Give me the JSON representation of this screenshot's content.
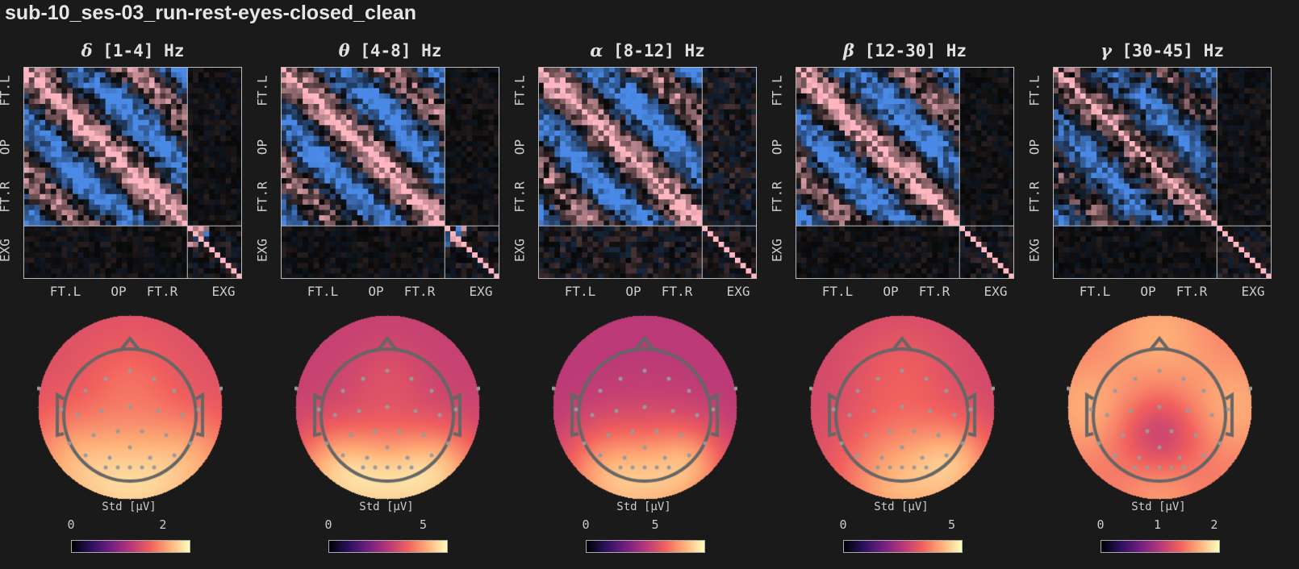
{
  "title": "sub-10_ses-03_run-rest-eyes-closed_clean",
  "chart_data": [
    {
      "type": "heatmap",
      "title_symbol": "δ",
      "title_text": " [1-4] Hz",
      "ytick_labels": [
        "FT.L",
        "OP",
        "FT.R",
        "EXG"
      ],
      "xtick_labels": [
        "FT.L",
        "OP",
        "FT.R",
        "EXG"
      ],
      "colorbar_label": "Std [µV]",
      "colorbar_ticks": [
        0,
        2
      ],
      "colorbar_range": [
        0,
        2.6
      ],
      "colormap": "magma",
      "topomap_pattern": "frontal-high-center, occipital max"
    },
    {
      "type": "heatmap",
      "title_symbol": "θ",
      "title_text": " [4-8] Hz",
      "ytick_labels": [
        "FT.L",
        "OP",
        "FT.R",
        "EXG"
      ],
      "xtick_labels": [
        "FT.L",
        "OP",
        "FT.R",
        "EXG"
      ],
      "colorbar_label": "Std [µV]",
      "colorbar_ticks": [
        0,
        5
      ],
      "colorbar_range": [
        0,
        6.3
      ],
      "colormap": "magma",
      "topomap_pattern": "occipital max"
    },
    {
      "type": "heatmap",
      "title_symbol": "α",
      "title_text": " [8-12] Hz",
      "ytick_labels": [
        "FT.L",
        "OP",
        "FT.R",
        "EXG"
      ],
      "xtick_labels": [
        "FT.L",
        "OP",
        "FT.R",
        "EXG"
      ],
      "colorbar_label": "Std [µV]",
      "colorbar_ticks": [
        0,
        5
      ],
      "colorbar_range": [
        0,
        8.6
      ],
      "colormap": "magma",
      "topomap_pattern": "occipital max"
    },
    {
      "type": "heatmap",
      "title_symbol": "β",
      "title_text": " [12-30] Hz",
      "ytick_labels": [
        "FT.L",
        "OP",
        "FT.R",
        "EXG"
      ],
      "xtick_labels": [
        "FT.L",
        "OP",
        "FT.R",
        "EXG"
      ],
      "colorbar_label": "Std [µV]",
      "colorbar_ticks": [
        0,
        5
      ],
      "colorbar_range": [
        0,
        5.5
      ],
      "colormap": "magma",
      "topomap_pattern": "occipital max"
    },
    {
      "type": "heatmap",
      "title_symbol": "γ",
      "title_text": " [30-45] Hz",
      "ytick_labels": [
        "FT.L",
        "OP",
        "FT.R",
        "EXG"
      ],
      "xtick_labels": [
        "FT.L",
        "OP",
        "FT.R",
        "EXG"
      ],
      "colorbar_label": "Std [µV]",
      "colorbar_ticks": [
        0,
        1,
        2
      ],
      "colorbar_range": [
        0,
        2.1
      ],
      "colormap": "magma",
      "topomap_pattern": "peripheral high, central-parietal low"
    }
  ],
  "colors": {
    "positive": "#ffb6c1",
    "negative": "#4a8ae6",
    "background": "#1a1a1a"
  }
}
